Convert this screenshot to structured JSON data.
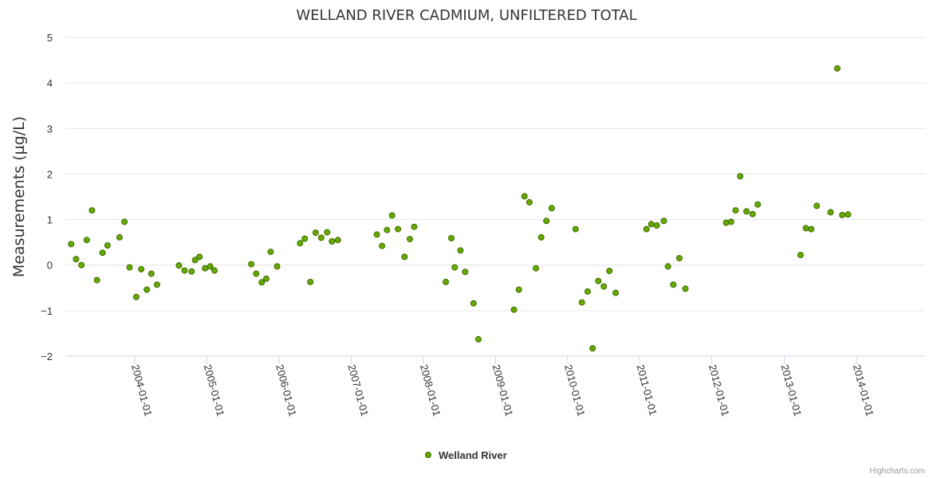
{
  "chart_data": {
    "type": "scatter",
    "title": "WELLAND RIVER CADMIUM, UNFILTERED TOTAL",
    "ylabel": "Measurements (µg/L)",
    "xlabel": "",
    "ylim": [
      -2,
      5
    ],
    "yticks": [
      5,
      4,
      3,
      2,
      1,
      0,
      -1,
      -2
    ],
    "ytick_labels": [
      "5",
      "4",
      "3",
      "2",
      "1",
      "0",
      "−1",
      "−2"
    ],
    "xlim": [
      "2003-01-15",
      "2014-12-15"
    ],
    "xticks": [
      "2004-01-01",
      "2005-01-01",
      "2006-01-01",
      "2007-01-01",
      "2008-01-01",
      "2009-01-01",
      "2010-01-01",
      "2011-01-01",
      "2012-01-01",
      "2013-01-01",
      "2014-01-01"
    ],
    "grid": true,
    "legend_position": "bottom-center",
    "credits": "Highcharts.com",
    "series": [
      {
        "name": "Welland River",
        "color": "#66aa00",
        "points": [
          [
            "2003-02-13",
            0.46
          ],
          [
            "2003-03-10",
            0.13
          ],
          [
            "2003-04-06",
            0.0
          ],
          [
            "2003-05-03",
            0.55
          ],
          [
            "2003-05-30",
            1.2
          ],
          [
            "2003-06-24",
            -0.33
          ],
          [
            "2003-07-22",
            0.27
          ],
          [
            "2003-08-16",
            0.43
          ],
          [
            "2003-10-16",
            0.61
          ],
          [
            "2003-11-10",
            0.95
          ],
          [
            "2003-12-06",
            -0.05
          ],
          [
            "2004-01-09",
            -0.7
          ],
          [
            "2004-02-03",
            -0.09
          ],
          [
            "2004-03-02",
            -0.54
          ],
          [
            "2004-03-25",
            -0.19
          ],
          [
            "2004-04-23",
            -0.43
          ],
          [
            "2004-08-12",
            -0.01
          ],
          [
            "2004-09-09",
            -0.12
          ],
          [
            "2004-10-15",
            -0.14
          ],
          [
            "2004-11-02",
            0.11
          ],
          [
            "2004-11-24",
            0.18
          ],
          [
            "2004-12-22",
            -0.07
          ],
          [
            "2005-01-17",
            -0.03
          ],
          [
            "2005-02-08",
            -0.12
          ],
          [
            "2005-08-13",
            0.02
          ],
          [
            "2005-09-07",
            -0.19
          ],
          [
            "2005-10-05",
            -0.38
          ],
          [
            "2005-10-28",
            -0.3
          ],
          [
            "2005-11-19",
            0.29
          ],
          [
            "2005-12-22",
            -0.03
          ],
          [
            "2006-04-17",
            0.48
          ],
          [
            "2006-05-11",
            0.58
          ],
          [
            "2006-06-08",
            -0.37
          ],
          [
            "2006-07-05",
            0.71
          ],
          [
            "2006-08-02",
            0.6
          ],
          [
            "2006-09-01",
            0.72
          ],
          [
            "2006-09-25",
            0.52
          ],
          [
            "2006-10-25",
            0.55
          ],
          [
            "2007-05-11",
            0.67
          ],
          [
            "2007-06-06",
            0.42
          ],
          [
            "2007-07-01",
            0.77
          ],
          [
            "2007-07-27",
            1.09
          ],
          [
            "2007-08-26",
            0.79
          ],
          [
            "2007-09-28",
            0.18
          ],
          [
            "2007-10-25",
            0.57
          ],
          [
            "2007-11-16",
            0.84
          ],
          [
            "2008-04-24",
            -0.37
          ],
          [
            "2008-05-22",
            0.59
          ],
          [
            "2008-06-08",
            -0.05
          ],
          [
            "2008-07-07",
            0.32
          ],
          [
            "2008-07-31",
            -0.15
          ],
          [
            "2008-09-11",
            -0.84
          ],
          [
            "2008-10-06",
            -1.63
          ],
          [
            "2009-04-04",
            -0.98
          ],
          [
            "2009-04-29",
            -0.54
          ],
          [
            "2009-05-27",
            1.51
          ],
          [
            "2009-06-21",
            1.38
          ],
          [
            "2009-07-24",
            -0.07
          ],
          [
            "2009-08-20",
            0.61
          ],
          [
            "2009-09-15",
            0.97
          ],
          [
            "2009-10-12",
            1.25
          ],
          [
            "2010-02-10",
            0.79
          ],
          [
            "2010-03-14",
            -0.82
          ],
          [
            "2010-04-12",
            -0.58
          ],
          [
            "2010-05-07",
            -1.83
          ],
          [
            "2010-06-05",
            -0.35
          ],
          [
            "2010-07-03",
            -0.47
          ],
          [
            "2010-07-31",
            -0.13
          ],
          [
            "2010-09-01",
            -0.61
          ],
          [
            "2011-02-04",
            0.79
          ],
          [
            "2011-02-28",
            0.9
          ],
          [
            "2011-03-28",
            0.87
          ],
          [
            "2011-05-03",
            0.97
          ],
          [
            "2011-05-24",
            -0.03
          ],
          [
            "2011-06-20",
            -0.43
          ],
          [
            "2011-07-20",
            0.15
          ],
          [
            "2011-08-20",
            -0.52
          ],
          [
            "2012-03-13",
            0.93
          ],
          [
            "2012-04-07",
            0.95
          ],
          [
            "2012-04-30",
            1.2
          ],
          [
            "2012-05-23",
            1.95
          ],
          [
            "2012-06-24",
            1.18
          ],
          [
            "2012-07-25",
            1.12
          ],
          [
            "2012-08-20",
            1.33
          ],
          [
            "2013-03-25",
            0.22
          ],
          [
            "2013-04-21",
            0.81
          ],
          [
            "2013-05-18",
            0.79
          ],
          [
            "2013-06-15",
            1.3
          ],
          [
            "2013-08-24",
            1.16
          ],
          [
            "2013-09-27",
            4.32
          ],
          [
            "2013-10-22",
            1.1
          ],
          [
            "2013-11-20",
            1.11
          ]
        ]
      }
    ]
  }
}
